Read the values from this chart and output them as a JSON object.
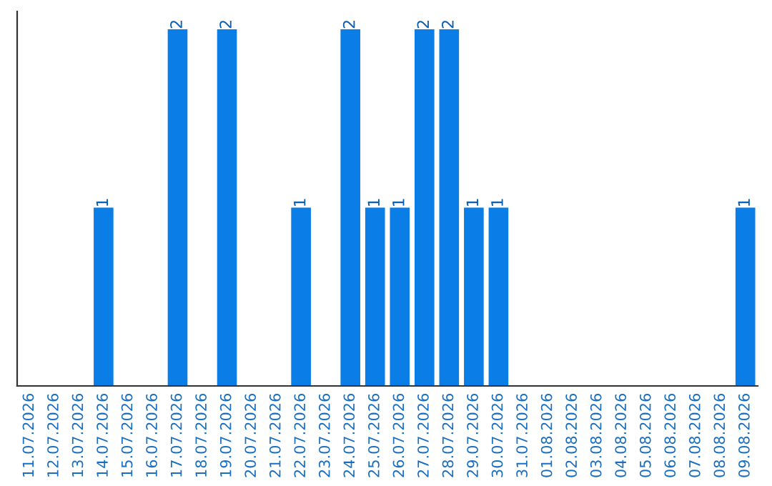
{
  "chart_data": {
    "type": "bar",
    "categories": [
      "11.07.2026",
      "12.07.2026",
      "13.07.2026",
      "14.07.2026",
      "15.07.2026",
      "16.07.2026",
      "17.07.2026",
      "18.07.2026",
      "19.07.2026",
      "20.07.2026",
      "21.07.2026",
      "22.07.2026",
      "23.07.2026",
      "24.07.2026",
      "25.07.2026",
      "26.07.2026",
      "27.07.2026",
      "28.07.2026",
      "29.07.2026",
      "30.07.2026",
      "31.07.2026",
      "01.08.2026",
      "02.08.2026",
      "03.08.2026",
      "04.08.2026",
      "05.08.2026",
      "06.08.2026",
      "07.08.2026",
      "08.08.2026",
      "09.08.2026"
    ],
    "values": [
      0,
      0,
      0,
      1,
      0,
      0,
      2,
      0,
      2,
      0,
      0,
      1,
      0,
      2,
      1,
      1,
      2,
      2,
      1,
      1,
      0,
      0,
      0,
      0,
      0,
      0,
      0,
      0,
      0,
      1
    ],
    "value_labels": [
      null,
      null,
      null,
      "1",
      null,
      null,
      "2",
      null,
      "2",
      null,
      null,
      "1",
      null,
      "2",
      "1",
      "1",
      "2",
      "2",
      "1",
      "1",
      null,
      null,
      null,
      null,
      null,
      null,
      null,
      null,
      null,
      "1"
    ],
    "color": "#0a7de6",
    "ylim": [
      0,
      2.1
    ],
    "tick_labels": "x",
    "grid": false,
    "legend": false
  }
}
